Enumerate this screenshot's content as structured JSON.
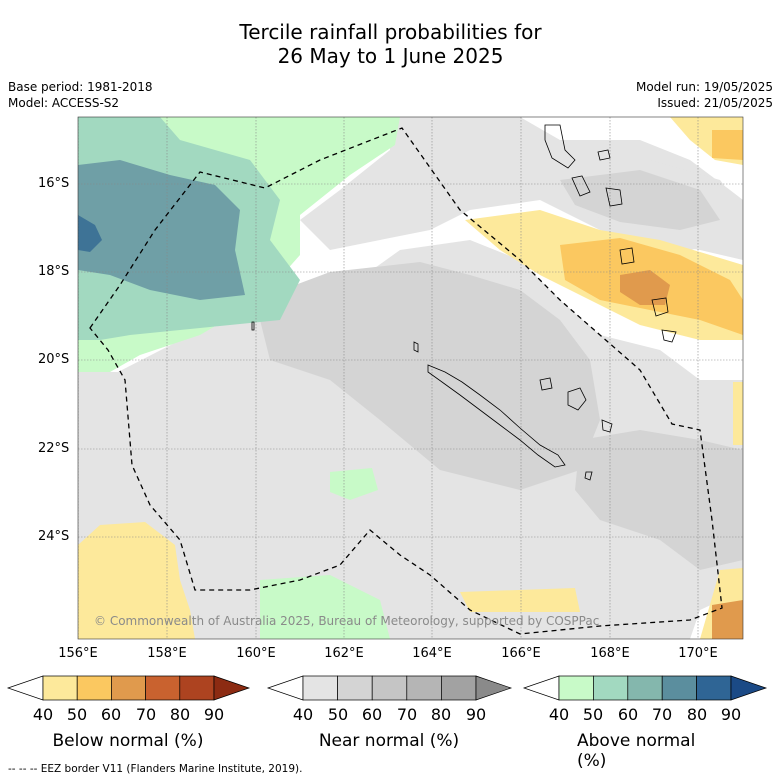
{
  "title": {
    "line1": "Tercile rainfall probabilities for",
    "line2": "26 May to 1 June 2025"
  },
  "meta": {
    "base_period": "Base period: 1981-2018",
    "model": "Model: ACCESS-S2",
    "model_run": "Model run: 19/05/2025",
    "issued": "Issued: 21/05/2025"
  },
  "map": {
    "lat_labels": [
      "16°S",
      "18°S",
      "20°S",
      "22°S",
      "24°S"
    ],
    "lon_labels": [
      "156°E",
      "158°E",
      "160°E",
      "162°E",
      "164°E",
      "166°E",
      "168°E",
      "170°E"
    ],
    "copyright": "© Commonwealth of Australia 2025, Bureau of Meteorology, supported by COSPPac"
  },
  "colorbars": [
    {
      "title": "Below normal (%)",
      "ticks": [
        "40",
        "50",
        "60",
        "70",
        "80",
        "90"
      ],
      "colors": [
        "#ffffff",
        "#fde99b",
        "#fbc860",
        "#e09a4d",
        "#c9622f",
        "#ad4320",
        "#8c2b12"
      ]
    },
    {
      "title": "Near normal (%)",
      "ticks": [
        "40",
        "50",
        "60",
        "70",
        "80",
        "90"
      ],
      "colors": [
        "#ffffff",
        "#e4e4e4",
        "#d4d4d4",
        "#c5c5c5",
        "#b5b5b5",
        "#a2a2a2",
        "#8a8a8a"
      ]
    },
    {
      "title": "Above normal (%)",
      "ticks": [
        "40",
        "50",
        "60",
        "70",
        "80",
        "90"
      ],
      "colors": [
        "#ffffff",
        "#c8fac8",
        "#a2d9c0",
        "#84b7ad",
        "#5b8e9e",
        "#2f6595",
        "#1b4a86"
      ]
    }
  ],
  "footer": "-- -- -- EEZ border V11 (Flanders Marine Institute, 2019)."
}
